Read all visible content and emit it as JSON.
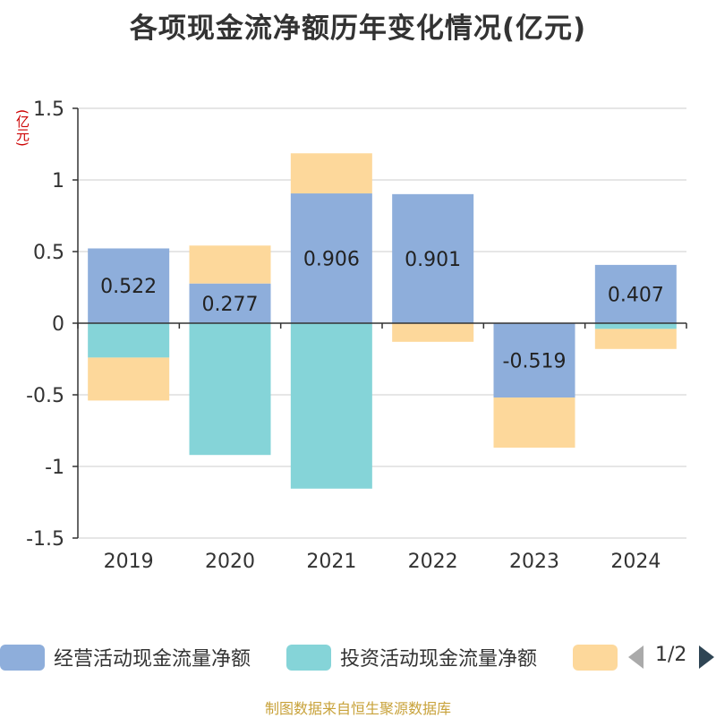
{
  "title": "各项现金流净额历年变化情况(亿元)",
  "unit": "(亿元)",
  "source": "制图数据来自恒生聚源数据库",
  "pager": {
    "text": "1/2"
  },
  "colors": {
    "operating": "#8eaedb",
    "investing": "#85d4d8",
    "financing": "#fdd89b"
  },
  "chart_data": {
    "type": "bar",
    "stacked": true,
    "categories": [
      "2019",
      "2020",
      "2021",
      "2022",
      "2023",
      "2024"
    ],
    "series": [
      {
        "name": "经营活动现金流量净额",
        "values": [
          0.522,
          0.277,
          0.906,
          0.901,
          -0.519,
          0.407
        ],
        "labels": [
          "0.522",
          "0.277",
          "0.906",
          "0.901",
          "-0.519",
          "0.407"
        ]
      },
      {
        "name": "投资活动现金流量净额",
        "values": [
          -0.24,
          -0.92,
          -1.155,
          0.0,
          0.0,
          -0.04
        ]
      },
      {
        "name": "",
        "values": [
          -0.3,
          0.265,
          0.28,
          -0.13,
          -0.35,
          -0.14
        ]
      }
    ],
    "ylim": [
      -1.5,
      1.5
    ],
    "yticks": [
      "-1.5",
      "-1",
      "-0.5",
      "0",
      "0.5",
      "1",
      "1.5"
    ],
    "grid": true,
    "legend_position": "bottom"
  }
}
